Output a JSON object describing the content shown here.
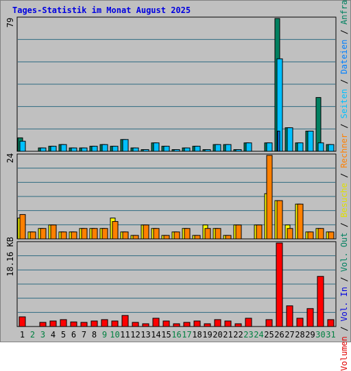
{
  "title": "Tages-Statistik im Monat August 2025",
  "colors": {
    "background": "#c0c0c0",
    "title": "#0000e0",
    "weekday": "#000000",
    "weekend": "#008040",
    "anfragen": "#008060",
    "dateien": "#00c0ff",
    "seiten": "#0080ff",
    "besuche": "#ffff00",
    "rechner": "#ff8000",
    "volumen": "#ff0000"
  },
  "chart_data": [
    {
      "type": "bar",
      "ymax_label": "79",
      "ylim": [
        0,
        79
      ],
      "grid": true,
      "categories": [
        "1",
        "2",
        "3",
        "4",
        "5",
        "6",
        "7",
        "8",
        "9",
        "10",
        "11",
        "12",
        "13",
        "14",
        "15",
        "16",
        "17",
        "18",
        "19",
        "20",
        "21",
        "22",
        "23",
        "24",
        "25",
        "26",
        "27",
        "28",
        "29",
        "30",
        "31"
      ],
      "weekend": [
        "2",
        "3",
        "9",
        "10",
        "16",
        "17",
        "23",
        "24",
        "30",
        "31"
      ],
      "series": [
        {
          "name": "Anfragen",
          "values": [
            8,
            0,
            2,
            3,
            4,
            2,
            2,
            3,
            4,
            3,
            7,
            2,
            1,
            5,
            3,
            1,
            2,
            3,
            1,
            4,
            4,
            1,
            5,
            0,
            5,
            79,
            14,
            5,
            12,
            32,
            4
          ]
        },
        {
          "name": "Dateien",
          "values": [
            6,
            0,
            2,
            3,
            4,
            2,
            2,
            3,
            4,
            3,
            7,
            2,
            1,
            5,
            3,
            1,
            2,
            3,
            1,
            4,
            4,
            1,
            5,
            0,
            5,
            55,
            14,
            5,
            12,
            5,
            4
          ]
        },
        {
          "name": "Seiten",
          "values": [
            0,
            0,
            0,
            0,
            0,
            0,
            0,
            0,
            0,
            0,
            0,
            0,
            0,
            0,
            0,
            0,
            0,
            0,
            0,
            0,
            0,
            0,
            0,
            0,
            0,
            12,
            0,
            0,
            0,
            0,
            0
          ]
        }
      ]
    },
    {
      "type": "bar",
      "ymax_label": "24",
      "ylim": [
        0,
        24
      ],
      "grid": true,
      "categories": [
        "1",
        "2",
        "3",
        "4",
        "5",
        "6",
        "7",
        "8",
        "9",
        "10",
        "11",
        "12",
        "13",
        "14",
        "15",
        "16",
        "17",
        "18",
        "19",
        "20",
        "21",
        "22",
        "23",
        "24",
        "25",
        "26",
        "27",
        "28",
        "29",
        "30",
        "31"
      ],
      "series": [
        {
          "name": "Besuche",
          "values": [
            6,
            2,
            3,
            4,
            2,
            2,
            3,
            3,
            3,
            6,
            2,
            1,
            4,
            3,
            1,
            2,
            3,
            1,
            4,
            3,
            1,
            4,
            0,
            4,
            13,
            11,
            4,
            10,
            2,
            3,
            2
          ]
        },
        {
          "name": "Rechner",
          "values": [
            7,
            2,
            3,
            4,
            2,
            2,
            3,
            3,
            3,
            5,
            2,
            1,
            4,
            3,
            1,
            2,
            3,
            1,
            3,
            3,
            1,
            4,
            0,
            4,
            24,
            11,
            3,
            10,
            2,
            3,
            2
          ]
        }
      ]
    },
    {
      "type": "bar",
      "ymax_label": "18.16 KB",
      "ylim": [
        0,
        18.16
      ],
      "grid": true,
      "categories": [
        "1",
        "2",
        "3",
        "4",
        "5",
        "6",
        "7",
        "8",
        "9",
        "10",
        "11",
        "12",
        "13",
        "14",
        "15",
        "16",
        "17",
        "18",
        "19",
        "20",
        "21",
        "22",
        "23",
        "24",
        "25",
        "26",
        "27",
        "28",
        "29",
        "30",
        "31"
      ],
      "series": [
        {
          "name": "Volumen",
          "values": [
            2.1,
            0,
            0.9,
            1.2,
            1.5,
            1.0,
            0.9,
            1.2,
            1.5,
            1.2,
            2.4,
            0.9,
            0.6,
            1.8,
            1.2,
            0.6,
            0.9,
            1.2,
            0.6,
            1.5,
            1.2,
            0.6,
            1.8,
            0,
            1.5,
            18.16,
            4.5,
            1.8,
            3.9,
            10.9,
            1.5
          ]
        }
      ]
    }
  ],
  "right_legend": [
    {
      "text": "Volumen",
      "color": "#e00000"
    },
    {
      "text": " / ",
      "color": "#000000"
    },
    {
      "text": "Vol. In",
      "color": "#0000e0"
    },
    {
      "text": " / ",
      "color": "#000000"
    },
    {
      "text": "Vol. Out",
      "color": "#008060"
    },
    {
      "text": " / ",
      "color": "#000000"
    },
    {
      "text": "Besuche",
      "color": "#e0e000"
    },
    {
      "text": " / ",
      "color": "#000000"
    },
    {
      "text": "Rechner",
      "color": "#ff8000"
    },
    {
      "text": " / ",
      "color": "#000000"
    },
    {
      "text": "Seiten",
      "color": "#00c0ff"
    },
    {
      "text": " / ",
      "color": "#000000"
    },
    {
      "text": "Dateien",
      "color": "#0080ff"
    },
    {
      "text": " / ",
      "color": "#000000"
    },
    {
      "text": "Anfragen",
      "color": "#008060"
    }
  ]
}
